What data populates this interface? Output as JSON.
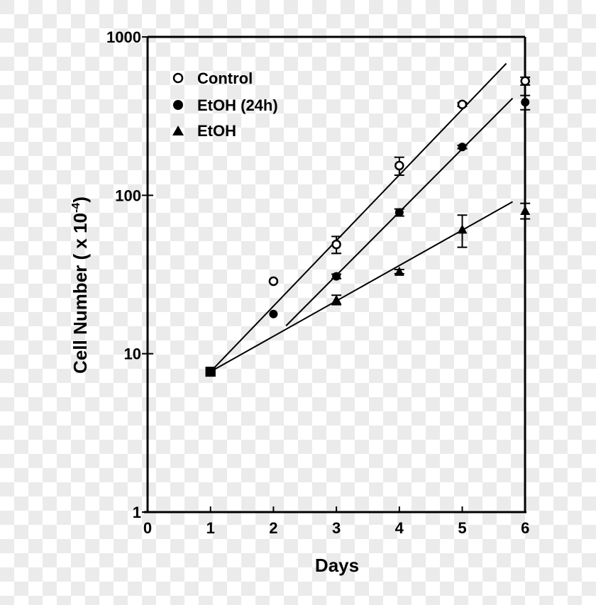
{
  "chart_data": {
    "type": "scatter",
    "title": "",
    "xlabel": "Days",
    "ylabel": "Cell Number ( x 10",
    "ylabel_sup": "-4",
    "ylabel_close": ")",
    "yscale": "log",
    "xlim": [
      0,
      6
    ],
    "ylim": [
      1,
      1000
    ],
    "x_ticks": [
      "0",
      "1",
      "2",
      "3",
      "4",
      "5",
      "6"
    ],
    "y_ticks": [
      "1",
      "10",
      "100",
      "1000"
    ],
    "grid": false,
    "legend_position": "upper-left",
    "series": [
      {
        "name": "Control",
        "marker": "open-circle",
        "x": [
          1,
          2,
          3,
          4,
          5,
          6
        ],
        "values": [
          7.7,
          28.7,
          49,
          154,
          375,
          527
        ],
        "error": [
          0,
          0,
          6,
          20,
          10,
          30
        ],
        "fit_line": {
          "x_start": 1,
          "y_start": 7.7,
          "x_end": 5.7,
          "y_end": 680
        }
      },
      {
        "name": "EtOH (24h)",
        "marker": "filled-circle",
        "x": [
          1,
          2,
          3,
          4,
          5,
          6
        ],
        "values": [
          7.7,
          17.8,
          30.8,
          78,
          202,
          387
        ],
        "error": [
          0,
          0,
          1,
          4,
          5,
          40
        ],
        "fit_line": {
          "x_start": 2.2,
          "y_start": 15,
          "x_end": 5.8,
          "y_end": 410
        }
      },
      {
        "name": "EtOH",
        "marker": "filled-triangle",
        "x": [
          1,
          3,
          4,
          5,
          6
        ],
        "values": [
          7.7,
          21.9,
          33,
          61,
          80
        ],
        "error": [
          0,
          1.5,
          1,
          14,
          9
        ],
        "fit_line": {
          "x_start": 1,
          "y_start": 7.7,
          "x_end": 5.8,
          "y_end": 91
        }
      }
    ]
  },
  "legend": {
    "items": [
      {
        "label": "Control",
        "marker": "open-circle"
      },
      {
        "label": "EtOH (24h)",
        "marker": "filled-circle"
      },
      {
        "label": "EtOH",
        "marker": "filled-triangle"
      }
    ]
  },
  "axes": {
    "x_label": "Days",
    "y_label_main": "Cell Number ( x 10",
    "y_label_sup": "-4",
    "y_label_end": ")"
  },
  "colors": {
    "ink": "#000000",
    "checker_light": "#ffffff",
    "checker_dark": "#ebebeb"
  }
}
